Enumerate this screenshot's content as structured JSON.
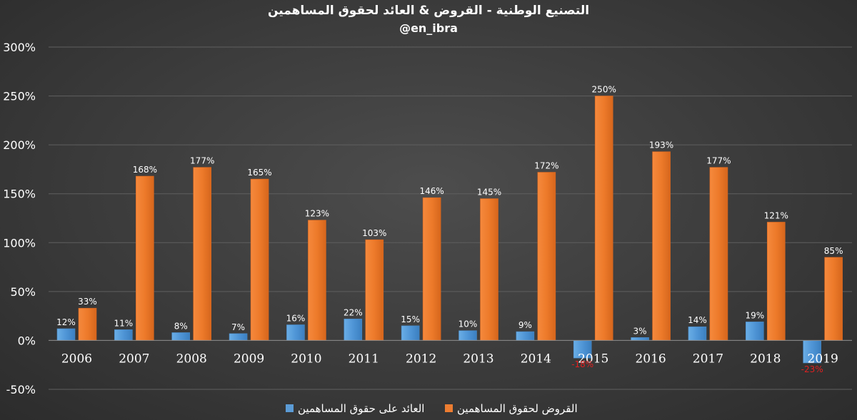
{
  "chart_data": {
    "type": "bar",
    "title": "التصنيع الوطنية - القروض & العائد لحقوق المساهمين",
    "subtitle": "@en_ibra",
    "categories": [
      "2006",
      "2007",
      "2008",
      "2009",
      "2010",
      "2011",
      "2012",
      "2013",
      "2014",
      "2015",
      "2016",
      "2017",
      "2018",
      "2019"
    ],
    "series": [
      {
        "name": "العائد على حقوق المساهمين",
        "color": "#5b9bd5",
        "values": [
          12,
          11,
          8,
          7,
          16,
          22,
          15,
          10,
          9,
          -18,
          3,
          14,
          19,
          -23
        ],
        "labels": [
          "12%",
          "11%",
          "8%",
          "7%",
          "16%",
          "22%",
          "15%",
          "10%",
          "9%",
          "-18%",
          "3%",
          "14%",
          "19%",
          "-23%"
        ]
      },
      {
        "name": "القروض لحقوق المساهمين",
        "color": "#ed7d31",
        "values": [
          33,
          168,
          177,
          165,
          123,
          103,
          146,
          145,
          172,
          250,
          193,
          177,
          121,
          85
        ],
        "labels": [
          "33%",
          "168%",
          "177%",
          "165%",
          "123%",
          "103%",
          "146%",
          "145%",
          "172%",
          "250%",
          "193%",
          "177%",
          "121%",
          "85%"
        ]
      }
    ],
    "ylim": [
      -50,
      300
    ],
    "yticks": [
      -50,
      0,
      50,
      100,
      150,
      200,
      250,
      300
    ],
    "ytick_labels": [
      "-50%",
      "0%",
      "50%",
      "100%",
      "150%",
      "200%",
      "250%",
      "300%"
    ],
    "grid": true,
    "legend": "bottom"
  }
}
